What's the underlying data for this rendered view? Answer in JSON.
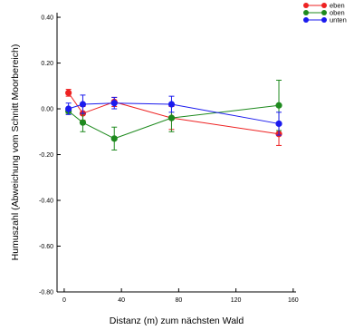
{
  "chart_data": {
    "type": "line",
    "xlabel": "Distanz (m) zum nächsten Wald",
    "ylabel": "Humuszahl (Abweichung vom Schnitt Moorbereich)",
    "xlim": [
      -5,
      162
    ],
    "ylim": [
      -0.8,
      0.42
    ],
    "x_ticks": [
      0,
      40,
      80,
      120,
      160
    ],
    "y_ticks": [
      -0.8,
      -0.6,
      -0.4,
      -0.2,
      0.0,
      0.2,
      0.4
    ],
    "x_tick_labels": [
      "0",
      "40",
      "80",
      "120",
      "160"
    ],
    "y_tick_labels": [
      "-0.80",
      "-0.60",
      "-0.40",
      "-0.20",
      "0.00",
      "0.20",
      "0.40"
    ],
    "legend_position": "top-right",
    "grid": false,
    "series": [
      {
        "name": "eben",
        "color": "#ee2222",
        "x": [
          3,
          13,
          35,
          75,
          150
        ],
        "y": [
          0.07,
          -0.02,
          0.03,
          -0.04,
          -0.11
        ],
        "err": [
          0.015,
          0.03,
          0.02,
          0.05,
          0.05
        ]
      },
      {
        "name": "oben",
        "color": "#1e8a1e",
        "x": [
          3,
          13,
          35,
          75,
          150
        ],
        "y": [
          -0.01,
          -0.06,
          -0.13,
          -0.04,
          0.015
        ],
        "err": [
          0.01,
          0.04,
          0.05,
          0.06,
          0.11
        ]
      },
      {
        "name": "unten",
        "color": "#1a1aee",
        "x": [
          3,
          13,
          35,
          75,
          150
        ],
        "y": [
          0.0,
          0.02,
          0.025,
          0.02,
          -0.065
        ],
        "err": [
          0.025,
          0.04,
          0.025,
          0.035,
          0.05
        ]
      }
    ]
  }
}
